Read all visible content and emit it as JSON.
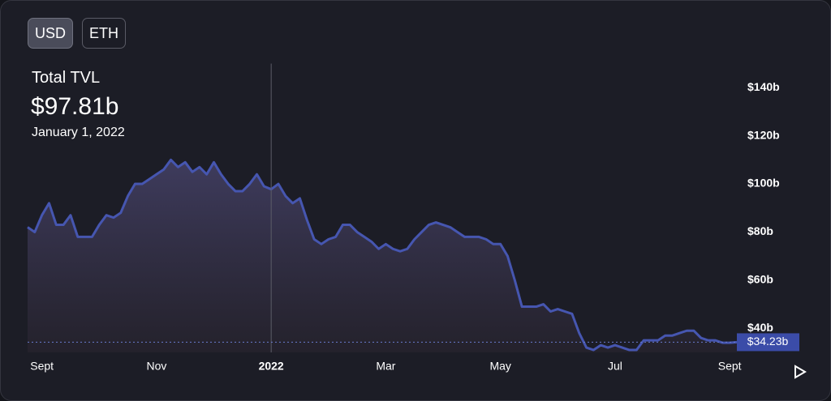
{
  "toggle": {
    "options": [
      "USD",
      "ETH"
    ],
    "selected": 0
  },
  "chart_data": {
    "type": "area",
    "title": "Total TVL",
    "hover": {
      "value": {
        "value": 97.81,
        "label": "$97.81b"
      },
      "date": "January 1, 2022"
    },
    "current": {
      "value": 34.23,
      "label": "$34.23b"
    },
    "color": "#4656b0",
    "categories": [
      null,
      null,
      "Sept",
      null,
      null,
      null,
      null,
      null,
      null,
      null,
      null,
      null,
      null,
      null,
      null,
      null,
      null,
      null,
      "Nov",
      null,
      null,
      null,
      null,
      null,
      null,
      null,
      null,
      null,
      null,
      null,
      null,
      null,
      null,
      null,
      "2022",
      null,
      null,
      null,
      null,
      null,
      null,
      null,
      null,
      null,
      null,
      null,
      null,
      null,
      null,
      null,
      "Mar",
      null,
      null,
      null,
      null,
      null,
      null,
      null,
      null,
      null,
      null,
      null,
      null,
      null,
      null,
      null,
      "May",
      null,
      null,
      null,
      null,
      null,
      null,
      null,
      null,
      null,
      null,
      null,
      null,
      null,
      null,
      null,
      "Jul",
      null,
      null,
      null,
      null,
      null,
      null,
      null,
      null,
      null,
      null,
      null,
      null,
      null,
      null,
      null,
      "Sept",
      null
    ],
    "values": [
      82,
      80,
      87,
      92,
      83,
      83,
      87,
      78,
      78,
      78,
      83,
      87,
      86,
      88,
      95,
      100,
      100,
      102,
      104,
      106,
      110,
      107,
      109,
      105,
      107,
      104,
      109,
      104,
      100,
      97,
      97,
      100,
      104,
      99,
      97.81,
      100,
      95,
      92,
      94,
      85,
      77,
      75,
      77,
      78,
      83,
      83,
      80,
      78,
      76,
      73,
      75,
      73,
      72,
      73,
      77,
      80,
      83,
      84,
      83,
      82,
      80,
      78,
      78,
      78,
      77,
      75,
      75,
      70,
      60,
      49,
      49,
      49,
      50,
      47,
      48,
      47,
      46,
      38,
      32,
      31,
      33,
      32,
      33,
      32,
      31,
      31,
      35,
      35,
      35,
      37,
      37,
      38,
      39,
      39,
      36,
      35,
      35,
      34,
      34,
      34.23
    ],
    "ylim": [
      30,
      150
    ],
    "yticks": [
      {
        "value": 40,
        "label": "$40b"
      },
      {
        "value": 60,
        "label": "$60b"
      },
      {
        "value": 80,
        "label": "$80b"
      },
      {
        "value": 100,
        "label": "$100b"
      },
      {
        "value": 120,
        "label": "$120b"
      },
      {
        "value": 140,
        "label": "$140b"
      }
    ]
  }
}
